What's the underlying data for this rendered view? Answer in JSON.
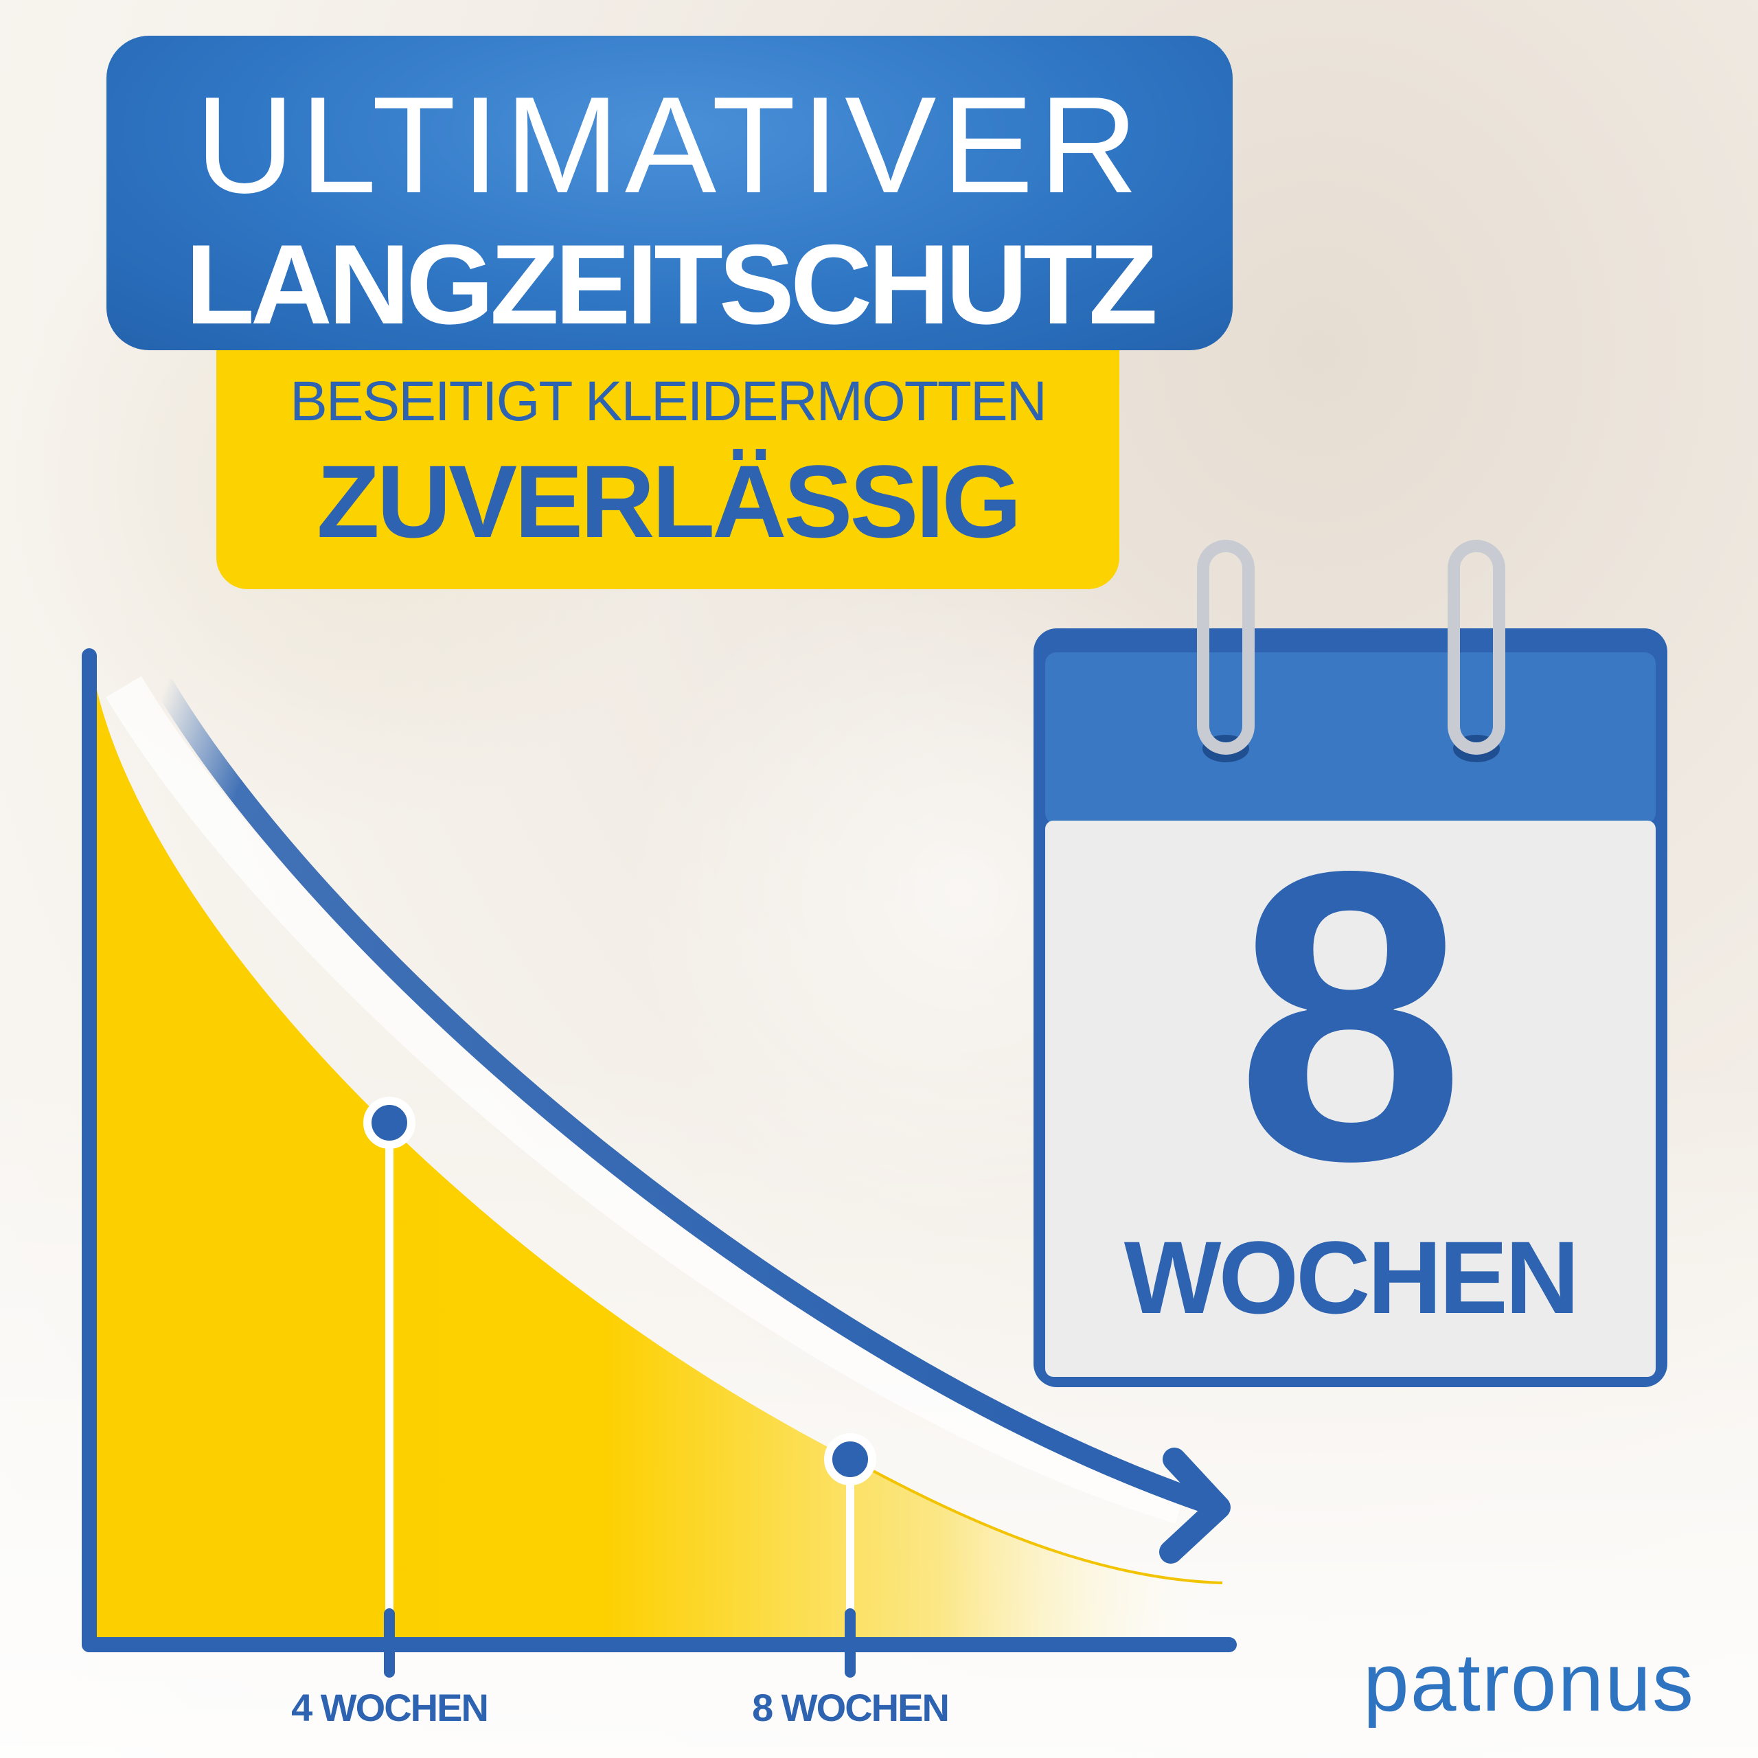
{
  "headline": {
    "line1": "ULTIMATIVER",
    "line2": "LANGZEITSCHUTZ"
  },
  "subheadline": {
    "line1": "BESEITIGT KLEIDERMOTTEN",
    "line2": "ZUVERLÄSSIG"
  },
  "graph": {
    "x_labels": [
      "4 WOCHEN",
      "8 WOCHEN"
    ]
  },
  "calendar": {
    "number": "8",
    "unit": "WOCHEN",
    "icon": "calendar-icon"
  },
  "brand": {
    "name": "patronus",
    "icon": "crosshair-bug-icon"
  },
  "colors": {
    "blue": "#2d63b0",
    "yellow": "#fcd200",
    "white": "#ffffff"
  }
}
